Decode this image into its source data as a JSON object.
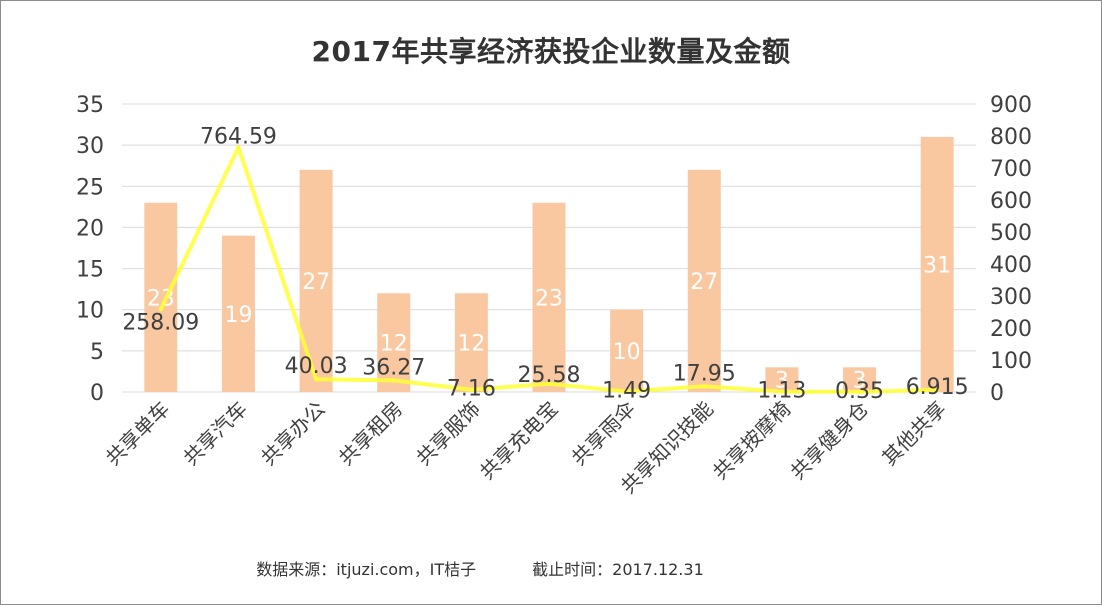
{
  "title": "2017年共享经济获投企业数量及金额",
  "footer": {
    "source": "数据来源：itjuzi.com，IT桔子",
    "cutoff": "截止时间：2017.12.31"
  },
  "chart_data": {
    "type": "bar",
    "categories": [
      "共享单车",
      "共享汽车",
      "共享办公",
      "共享租房",
      "共享服饰",
      "共享充电宝",
      "共享雨伞",
      "共享知识技能",
      "共享按摩椅",
      "共享健身仓",
      "其他共享"
    ],
    "series": [
      {
        "type": "bar",
        "axis": "left",
        "values": [
          23,
          19,
          27,
          12,
          12,
          23,
          10,
          27,
          3,
          3,
          31
        ],
        "labels": [
          "23",
          "19",
          "27",
          "12",
          "12",
          "23",
          "10",
          "27",
          "3",
          "3",
          "31"
        ],
        "color": "#f9c8a0"
      },
      {
        "type": "line",
        "axis": "right",
        "values": [
          258.09,
          764.59,
          40.03,
          36.27,
          7.16,
          25.58,
          1.49,
          17.95,
          1.13,
          0.35,
          6.915
        ],
        "labels": [
          "258.09",
          "764.59",
          "40.03",
          "36.27",
          "7.16",
          "25.58",
          "1.49",
          "17.95",
          "1.13",
          "0.35",
          "6.915"
        ],
        "color": "#ffff33"
      }
    ],
    "y_left": {
      "min": 0,
      "max": 35,
      "ticks": [
        "0",
        "5",
        "10",
        "15",
        "20",
        "25",
        "30",
        "35"
      ]
    },
    "y_right": {
      "min": 0,
      "max": 900,
      "ticks": [
        "0",
        "100",
        "200",
        "300",
        "400",
        "500",
        "600",
        "700",
        "800",
        "900"
      ]
    },
    "grid": true,
    "legend": "none",
    "colors": {
      "bar": "#f9c8a0",
      "line": "#ffff33",
      "grid": "#d9d9d9",
      "axis_text": "#404040"
    }
  }
}
